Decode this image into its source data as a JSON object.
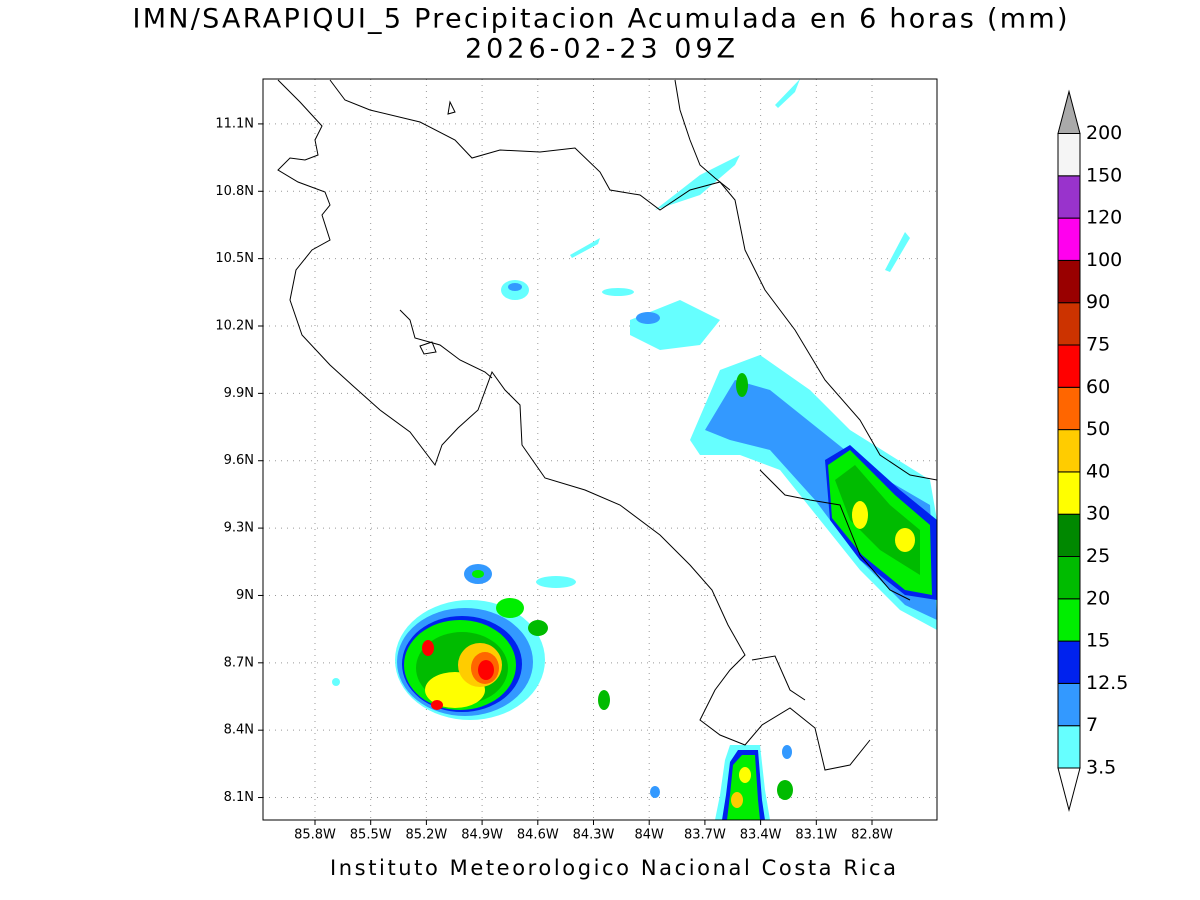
{
  "title": "IMN/SARAPIQUI_5 Precipitacion Acumulada en 6 horas (mm)",
  "subtitle": "2026-02-23 09Z",
  "footer": "Instituto Meteorologico Nacional Costa Rica",
  "map": {
    "lon_range": [
      -86.08,
      -82.45
    ],
    "lat_range": [
      8.0,
      11.3
    ],
    "grid": true,
    "lat_ticks": [
      {
        "value": 11.1,
        "label": "11.1N"
      },
      {
        "value": 10.8,
        "label": "10.8N"
      },
      {
        "value": 10.5,
        "label": "10.5N"
      },
      {
        "value": 10.2,
        "label": "10.2N"
      },
      {
        "value": 9.9,
        "label": "9.9N"
      },
      {
        "value": 9.6,
        "label": "9.6N"
      },
      {
        "value": 9.3,
        "label": "9.3N"
      },
      {
        "value": 9.0,
        "label": "9N"
      },
      {
        "value": 8.7,
        "label": "8.7N"
      },
      {
        "value": 8.4,
        "label": "8.4N"
      },
      {
        "value": 8.1,
        "label": "8.1N"
      }
    ],
    "lon_ticks": [
      {
        "value": -85.8,
        "label": "85.8W"
      },
      {
        "value": -85.5,
        "label": "85.5W"
      },
      {
        "value": -85.2,
        "label": "85.2W"
      },
      {
        "value": -84.9,
        "label": "84.9W"
      },
      {
        "value": -84.6,
        "label": "84.6W"
      },
      {
        "value": -84.3,
        "label": "84.3W"
      },
      {
        "value": -84.0,
        "label": "84W"
      },
      {
        "value": -83.7,
        "label": "83.7W"
      },
      {
        "value": -83.4,
        "label": "83.4W"
      },
      {
        "value": -83.1,
        "label": "83.1W"
      },
      {
        "value": -82.8,
        "label": "82.8W"
      }
    ]
  },
  "colorbar": {
    "levels": [
      3.5,
      7,
      12.5,
      15,
      20,
      25,
      30,
      40,
      50,
      60,
      75,
      90,
      100,
      120,
      150,
      200
    ],
    "colors": [
      "#66ffff",
      "#3399ff",
      "#0022ee",
      "#00ee00",
      "#00bb00",
      "#008800",
      "#ffff00",
      "#ffcc00",
      "#ff6600",
      "#ff0000",
      "#cc3300",
      "#990000",
      "#ff00ee",
      "#9933cc",
      "#f5f5f5"
    ],
    "under_color": "#ffffff",
    "over_color": "#aaaaaa"
  }
}
